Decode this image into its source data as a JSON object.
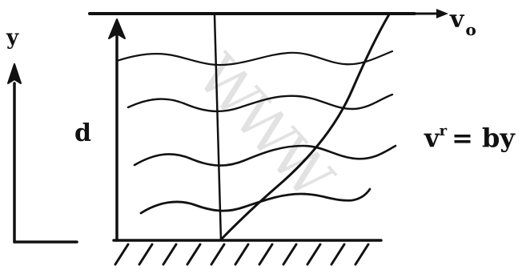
{
  "labels": {
    "y_axis": "y",
    "depth": "d",
    "velocity_symbol": "v",
    "velocity_subscript": "o",
    "equation_lhs": "v",
    "equation_exponent": "r",
    "equation_rhs": "= by"
  },
  "watermark": "WWW",
  "colors": {
    "ink": "#111111",
    "background": "#ffffff",
    "watermark": "#e2e2e2"
  }
}
